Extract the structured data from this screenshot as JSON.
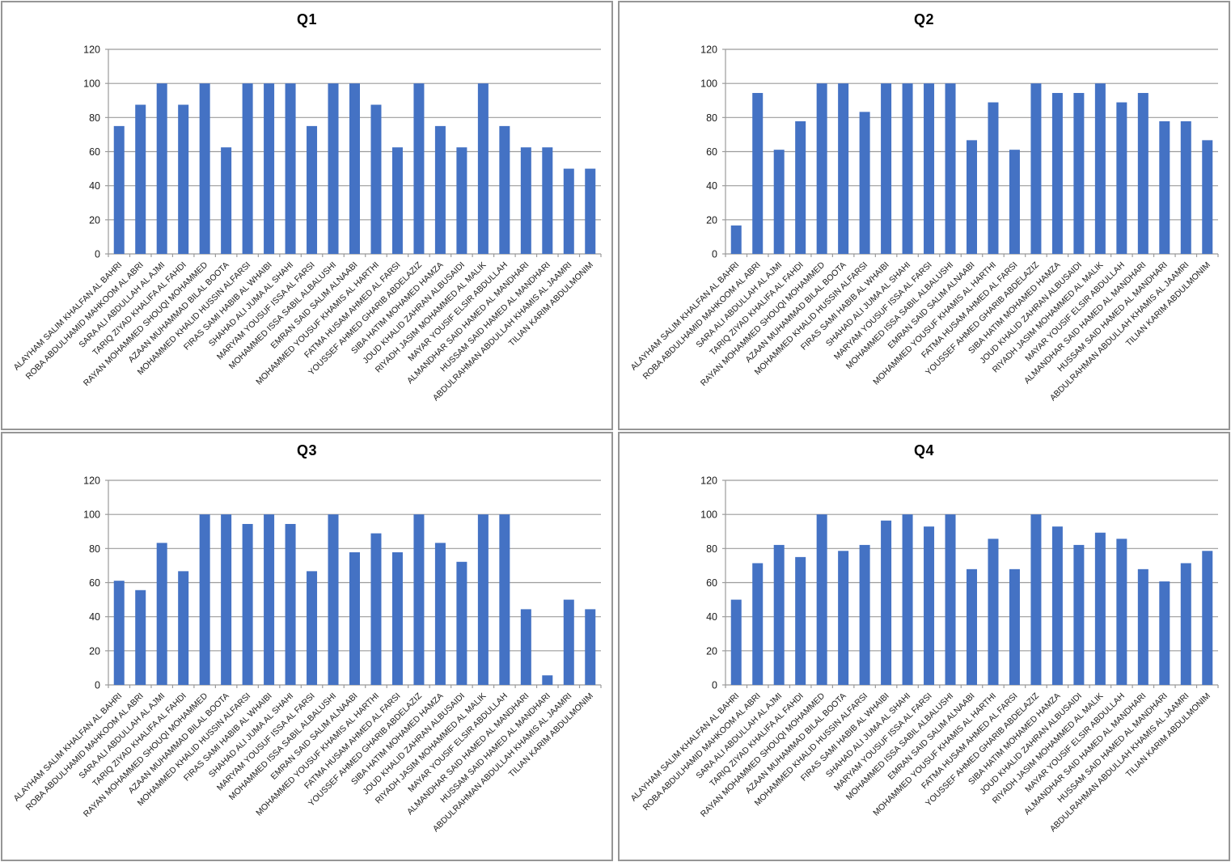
{
  "style": {
    "bar_color": "#4472C4",
    "gridline_color": "#9B9B9B",
    "axis_color": "#9B9B9B",
    "text_color": "#1A1A1A",
    "panel_border_color": "#969696",
    "background": "#FFFFFF"
  },
  "chart_data": [
    {
      "id": "q1",
      "type": "bar",
      "title": "Q1",
      "xlabel": "",
      "ylabel": "",
      "ylim": [
        0,
        120
      ],
      "ytick_interval": 20,
      "grid": true,
      "legend": "none",
      "categories": [
        "ALAYHAM SALIM KHALFAN AL BAHRI",
        "ROBA ABDULHAMID MAHKOOM AL ABRI",
        "SARA ALI ABDULLAH AL AJMI",
        "TARIQ ZIYAD KHALIFA AL FAHDI",
        "RAYAN MOHAMMED SHOUQI MOHAMMED",
        "AZAAN MUHAMMAD BILAL BOOTA",
        "MOHAMMED KHALID HUSSIN ALFARSI",
        "FIRAS SAMI HABIB AL WHAIBI",
        "SHAHAD ALI JUMA AL SHAHI",
        "MARYAM YOUSUF ISSA AL FARSI",
        "MOHAMMED ISSA SABIL ALBALUSHI",
        "EMRAN SAID SALIM ALNAABI",
        "MOHAMMED YOUSUF KHAMIS AL HARTHI",
        "FATMA HUSAM AHMED AL FARSI",
        "YOUSSEF AHMED GHARIB ABDELAZIZ",
        "SIBA HATIM MOHAMED HAMZA",
        "JOUD KHALID ZAHRAN ALBUSAIDI",
        "RIYADH JASIM MOHAMMED AL MALIK",
        "MAYAR YOUSIF ELSIR ABDULLAH",
        "ALMANDHAR SAID HAMED AL MANDHARI",
        "HUSSAM SAID HAMED AL MANDHARI",
        "ABDULRAHMAN ABDULLAH KHAMIS AL JAAMRI",
        "TILIAN KARIM ABDULMONIM"
      ],
      "values": [
        75,
        87.5,
        100,
        87.5,
        100,
        62.5,
        100,
        100,
        100,
        75,
        100,
        100,
        87.5,
        62.5,
        100,
        75,
        62.5,
        100,
        75,
        62.5,
        62.5,
        50,
        50
      ]
    },
    {
      "id": "q2",
      "type": "bar",
      "title": "Q2",
      "xlabel": "",
      "ylabel": "",
      "ylim": [
        0,
        120
      ],
      "ytick_interval": 20,
      "grid": true,
      "legend": "none",
      "categories": [
        "ALAYHAM SALIM KHALFAN AL BAHRI",
        "ROBA ABDULHAMID MAHKOOM AL ABRI",
        "SARA ALI ABDULLAH AL AJMI",
        "TARIQ ZIYAD KHALIFA AL FAHDI",
        "RAYAN MOHAMMED SHOUQI MOHAMMED",
        "AZAAN MUHAMMAD BILAL BOOTA",
        "MOHAMMED KHALID HUSSIN ALFARSI",
        "FIRAS SAMI HABIB AL WHAIBI",
        "SHAHAD ALI JUMA AL SHAHI",
        "MARYAM YOUSUF ISSA AL FARSI",
        "MOHAMMED ISSA SABIL ALBALUSHI",
        "EMRAN SAID SALIM ALNAABI",
        "MOHAMMED YOUSUF KHAMIS AL HARTHI",
        "FATMA HUSAM AHMED AL FARSI",
        "YOUSSEF AHMED GHARIB ABDELAZIZ",
        "SIBA HATIM MOHAMED HAMZA",
        "JOUD KHALID ZAHRAN ALBUSAIDI",
        "RIYADH JASIM MOHAMMED AL MALIK",
        "MAYAR YOUSIF ELSIR ABDULLAH",
        "ALMANDHAR SAID HAMED AL MANDHARI",
        "HUSSAM SAID HAMED AL MANDHARI",
        "ABDULRAHMAN ABDULLAH KHAMIS AL JAAMRI",
        "TILIAN KARIM ABDULMONIM"
      ],
      "values": [
        16.7,
        94.4,
        61.1,
        77.8,
        100,
        100,
        83.3,
        100,
        100,
        100,
        100,
        66.7,
        88.9,
        61.1,
        100,
        94.4,
        94.4,
        100,
        88.9,
        94.4,
        77.8,
        77.8,
        66.7
      ]
    },
    {
      "id": "q3",
      "type": "bar",
      "title": "Q3",
      "xlabel": "",
      "ylabel": "",
      "ylim": [
        0,
        120
      ],
      "ytick_interval": 20,
      "grid": true,
      "legend": "none",
      "categories": [
        "ALAYHAM SALIM KHALFAN AL BAHRI",
        "ROBA ABDULHAMID MAHKOOM AL ABRI",
        "SARA ALI ABDULLAH AL AJMI",
        "TARIQ ZIYAD KHALIFA AL FAHDI",
        "RAYAN MOHAMMED SHOUQI MOHAMMED",
        "AZAAN MUHAMMAD BILAL BOOTA",
        "MOHAMMED KHALID HUSSIN ALFARSI",
        "FIRAS SAMI HABIB AL WHAIBI",
        "SHAHAD ALI JUMA AL SHAHI",
        "MARYAM YOUSUF ISSA AL FARSI",
        "MOHAMMED ISSA SABIL ALBALUSHI",
        "EMRAN SAID SALIM ALNAABI",
        "MOHAMMED YOUSUF KHAMIS AL HARTHI",
        "FATMA HUSAM AHMED AL FARSI",
        "YOUSSEF AHMED GHARIB ABDELAZIZ",
        "SIBA HATIM MOHAMED HAMZA",
        "JOUD KHALID ZAHRAN ALBUSAIDI",
        "RIYADH JASIM MOHAMMED AL MALIK",
        "MAYAR YOUSIF ELSIR ABDULLAH",
        "ALMANDHAR SAID HAMED AL MANDHARI",
        "HUSSAM SAID HAMED AL MANDHARI",
        "ABDULRAHMAN ABDULLAH KHAMIS AL JAAMRI",
        "TILIAN KARIM ABDULMONIM"
      ],
      "values": [
        61.1,
        55.6,
        83.3,
        66.7,
        100,
        100,
        94.4,
        100,
        94.4,
        66.7,
        100,
        77.8,
        88.9,
        77.8,
        100,
        83.3,
        72.2,
        100,
        100,
        44.4,
        5.6,
        50,
        44.4
      ]
    },
    {
      "id": "q4",
      "type": "bar",
      "title": "Q4",
      "xlabel": "",
      "ylabel": "",
      "ylim": [
        0,
        120
      ],
      "ytick_interval": 20,
      "grid": true,
      "legend": "none",
      "categories": [
        "ALAYHAM SALIM KHALFAN AL BAHRI",
        "ROBA ABDULHAMID MAHKOOM AL ABRI",
        "SARA ALI ABDULLAH AL AJMI",
        "TARIQ ZIYAD KHALIFA AL FAHDI",
        "RAYAN MOHAMMED SHOUQI MOHAMMED",
        "AZAAN MUHAMMAD BILAL BOOTA",
        "MOHAMMED KHALID HUSSIN ALFARSI",
        "FIRAS SAMI HABIB AL WHAIBI",
        "SHAHAD ALI JUMA AL SHAHI",
        "MARYAM YOUSUF ISSA AL FARSI",
        "MOHAMMED ISSA SABIL ALBALUSHI",
        "EMRAN SAID SALIM ALNAABI",
        "MOHAMMED YOUSUF KHAMIS AL HARTHI",
        "FATMA HUSAM AHMED AL FARSI",
        "YOUSSEF AHMED GHARIB ABDELAZIZ",
        "SIBA HATIM MOHAMED HAMZA",
        "JOUD KHALID ZAHRAN ALBUSAIDI",
        "RIYADH JASIM MOHAMMED AL MALIK",
        "MAYAR YOUSIF ELSIR ABDULLAH",
        "ALMANDHAR SAID HAMED AL MANDHARI",
        "HUSSAM SAID HAMED AL MANDHARI",
        "ABDULRAHMAN ABDULLAH KHAMIS AL JAAMRI",
        "TILIAN KARIM ABDULMONIM"
      ],
      "values": [
        50,
        71.4,
        82.1,
        75,
        100,
        78.6,
        82.1,
        96.4,
        100,
        92.9,
        100,
        67.9,
        85.7,
        67.9,
        100,
        92.9,
        82.1,
        89.3,
        85.7,
        67.9,
        60.7,
        71.4,
        78.6
      ]
    }
  ]
}
